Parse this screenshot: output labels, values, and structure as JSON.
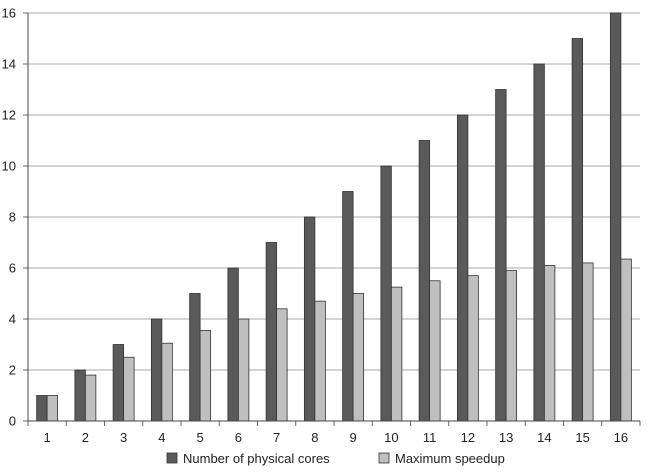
{
  "chart_data": {
    "type": "bar",
    "categories": [
      "1",
      "2",
      "3",
      "4",
      "5",
      "6",
      "7",
      "8",
      "9",
      "10",
      "11",
      "12",
      "13",
      "14",
      "15",
      "16"
    ],
    "series": [
      {
        "name": "Number of physical cores",
        "color": "#5a5a5a",
        "values": [
          1,
          2,
          3,
          4,
          5,
          6,
          7,
          8,
          9,
          10,
          11,
          12,
          13,
          14,
          15,
          16
        ]
      },
      {
        "name": "Maximum speedup",
        "color": "#bfbfbf",
        "values": [
          1.0,
          1.8,
          2.5,
          3.05,
          3.55,
          4.0,
          4.4,
          4.7,
          5.0,
          5.25,
          5.5,
          5.7,
          5.9,
          6.1,
          6.2,
          6.35
        ]
      }
    ],
    "yticks": [
      "0",
      "2",
      "4",
      "6",
      "8",
      "10",
      "12",
      "14",
      "16"
    ],
    "ylim": [
      0,
      16
    ],
    "grid": true,
    "legend_position": "bottom-center",
    "title": "",
    "xlabel": "",
    "ylabel": ""
  }
}
